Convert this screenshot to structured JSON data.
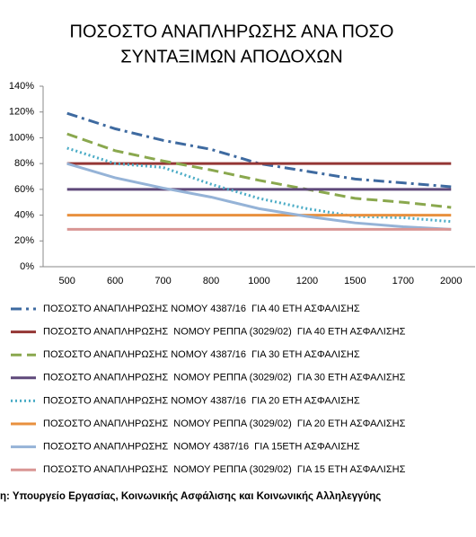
{
  "chart_data": {
    "type": "line",
    "title": [
      "ΠΟΣΟΣΤΟ ΑΝΑΠΛΗΡΩΣΗΣ ΑΝΑ ΠΟΣΟ",
      "ΣΥΝΤΑΞΙΜΩΝ ΑΠΟΔΟΧΩΝ"
    ],
    "categories": [
      "500",
      "600",
      "700",
      "800",
      "1000",
      "1200",
      "1500",
      "1700",
      "2000"
    ],
    "ylim": [
      0,
      140
    ],
    "yticks": [
      {
        "value": 0,
        "label": "0%"
      },
      {
        "value": 20,
        "label": "20%"
      },
      {
        "value": 40,
        "label": "40%"
      },
      {
        "value": 60,
        "label": "60%"
      },
      {
        "value": 80,
        "label": "80%"
      },
      {
        "value": 100,
        "label": "100%"
      },
      {
        "value": 120,
        "label": "120%"
      },
      {
        "value": 140,
        "label": "140%"
      }
    ],
    "grid": false,
    "legend": "bottom",
    "series": [
      {
        "name": "ΠΟΣΟΣΤΟ ΑΝΑΠΛΗΡΩΣΗΣ ΝΟΜΟΥ 4387/16  ΓΙΑ 40 ΕΤΗ ΑΣΦΑΛΙΣΗΣ",
        "color": "#3e6aa0",
        "dash": "dashdot",
        "values": [
          119,
          107,
          98,
          91,
          80,
          74,
          68,
          65,
          62
        ]
      },
      {
        "name": "ΠΟΣΟΣΤΟ ΑΝΑΠΛΗΡΩΣΗΣ  ΝΟΜΟΥ ΡΕΠΠΑ (3029/02)  ΓΙΑ 40 ΕΤΗ ΑΣΦΑΛΙΣΗΣ",
        "color": "#943634",
        "dash": "solid",
        "values": [
          80,
          80,
          80,
          80,
          80,
          80,
          80,
          80,
          80
        ]
      },
      {
        "name": "ΠΟΣΟΣΤΟ ΑΝΑΠΛΗΡΩΣΗΣ ΝΟΜΟΥ 4387/16  ΓΙΑ 30 ΕΤΗ ΑΣΦΑΛΙΣΗΣ",
        "color": "#8aa84e",
        "dash": "dash",
        "values": [
          103,
          90,
          82,
          75,
          67,
          60,
          53,
          50,
          46
        ]
      },
      {
        "name": "ΠΟΣΟΣΤΟ ΑΝΑΠΛΗΡΩΣΗΣ  ΝΟΜΟΥ ΡΕΠΠΑ (3029/02)  ΓΙΑ 30 ΕΤΗ ΑΣΦΑΛΙΣΗΣ",
        "color": "#5f497a",
        "dash": "solid",
        "values": [
          60,
          60,
          60,
          60,
          60,
          60,
          60,
          60,
          60
        ]
      },
      {
        "name": "ΠΟΣΟΣΤΟ ΑΝΑΠΛΗΡΩΣΗΣ ΝΟΜΟΥ 4387/16  ΓΙΑ 20 ΕΤΗ ΑΣΦΑΛΙΣΗΣ",
        "color": "#4bacc6",
        "dash": "dot",
        "values": [
          92,
          80,
          77,
          64,
          53,
          45,
          39,
          38,
          35
        ]
      },
      {
        "name": "ΠΟΣΟΣΤΟ ΑΝΑΠΛΗΡΩΣΗΣ  ΝΟΜΟΥ ΡΕΠΠΑ (3029/02)  ΓΙΑ 20 ΕΤΗ ΑΣΦΑΛΙΣΗΣ",
        "color": "#e8903e",
        "dash": "solid",
        "values": [
          40,
          40,
          40,
          40,
          40,
          40,
          40,
          40,
          40
        ]
      },
      {
        "name": "ΠΟΣΟΣΤΟ ΑΝΑΠΛΗΡΩΣΗΣ  ΝΟΜΟΥ 4387/16  ΓΙΑ 15ΕΤΗ ΑΣΦΑΛΙΣΗΣ",
        "color": "#95b3d7",
        "dash": "solid",
        "values": [
          80,
          69,
          61,
          54,
          45,
          39,
          34,
          31,
          29
        ]
      },
      {
        "name": "ΠΟΣΟΣΤΟ ΑΝΑΠΛΗΡΩΣΗΣ  ΝΟΜΟΥ ΡΕΠΠΑ (3029/02)  ΓΙΑ 15 ΕΤΗ ΑΣΦΑΛΙΣΗΣ",
        "color": "#d99694",
        "dash": "solid",
        "values": [
          29,
          29,
          29,
          29,
          29,
          29,
          29,
          29,
          29
        ]
      }
    ],
    "source": "η: Υπουργείο Εργασίας, Κοινωνικής Ασφάλισης και Κοινωνικής Αλληλεγγύης"
  }
}
